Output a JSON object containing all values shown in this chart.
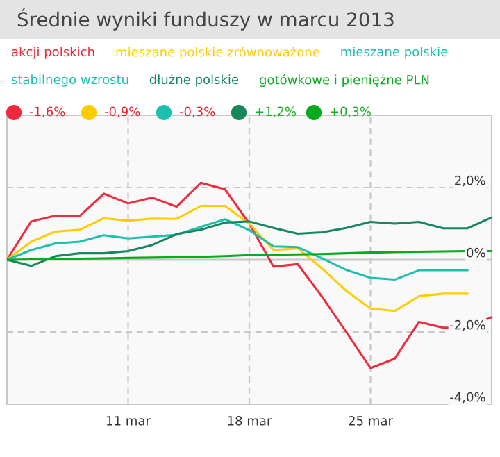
{
  "chart_data": {
    "type": "line",
    "title": "Średnie wyniki funduszy w marcu 2013",
    "categories": [
      null,
      null,
      null,
      null,
      null,
      "11 mar",
      null,
      null,
      null,
      null,
      "18 mar",
      null,
      null,
      null,
      null,
      "25 mar",
      null,
      null,
      null,
      null,
      null
    ],
    "series": [
      {
        "name": "akcji polskich",
        "color": "#ee2a3c",
        "values": [
          0,
          1.06,
          1.22,
          1.21,
          1.83,
          1.56,
          1.72,
          1.47,
          2.13,
          1.95,
          1.0,
          -0.19,
          -0.12,
          -1.02,
          -2.0,
          -3.0,
          -2.74,
          -1.72,
          -1.88,
          -1.88,
          -1.59
        ]
      },
      {
        "name": "mieszane polskie zrównoważone",
        "color": "#ffcc00",
        "values": [
          0,
          0.5,
          0.78,
          0.83,
          1.15,
          1.08,
          1.14,
          1.13,
          1.49,
          1.49,
          1.0,
          0.27,
          0.32,
          -0.24,
          -0.86,
          -1.35,
          -1.42,
          -1.01,
          -0.94,
          -0.94,
          null
        ]
      },
      {
        "name": "mieszane polskie stabilnego wzrostu",
        "color": "#1fbfb0",
        "values": [
          0,
          0.27,
          0.45,
          0.5,
          0.68,
          0.59,
          0.64,
          0.69,
          0.91,
          1.12,
          0.82,
          0.37,
          0.35,
          0.04,
          -0.28,
          -0.5,
          -0.55,
          -0.29,
          -0.29,
          -0.29,
          null
        ]
      },
      {
        "name": "dłużne polskie",
        "color": "#17875c",
        "values": [
          0,
          -0.17,
          0.1,
          0.18,
          0.18,
          0.24,
          0.41,
          0.71,
          0.83,
          1.03,
          1.06,
          0.88,
          0.72,
          0.76,
          0.88,
          1.05,
          1.0,
          1.05,
          0.87,
          0.87,
          1.17
        ]
      },
      {
        "name": "gotówkowe i pieniężne PLN",
        "color": "#0aaa1e",
        "values": [
          0,
          0.01,
          0.02,
          0.03,
          0.04,
          0.05,
          0.06,
          0.07,
          0.08,
          0.1,
          0.13,
          0.14,
          0.15,
          0.16,
          0.18,
          0.2,
          0.21,
          0.22,
          0.23,
          0.24,
          0.24
        ]
      }
    ],
    "annotations": [
      "-1,6%",
      "-0,9%",
      "-0,3%",
      "+1,2%",
      "+0,3%"
    ],
    "ylim": [
      -4,
      4
    ],
    "yticks": [
      {
        "value": -4,
        "label": "-4,0%"
      },
      {
        "value": -2,
        "label": "-2,0%"
      },
      {
        "value": 0,
        "label": "0%"
      },
      {
        "value": 2,
        "label": "2,0%"
      },
      {
        "value": 4,
        "label": null
      }
    ],
    "ref_lines": [
      {
        "axis": "y",
        "value": 0,
        "label": null,
        "color": "#c8c8c8"
      }
    ],
    "grid": true,
    "legend": "top",
    "marker": "none",
    "line_style": "solid"
  }
}
